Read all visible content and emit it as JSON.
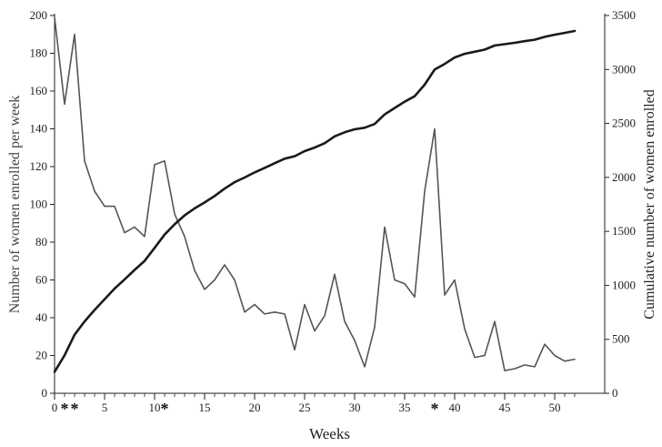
{
  "chart_data": {
    "type": "line",
    "xlabel": "Weeks",
    "ylabel_left": "Number of women enrolled per week",
    "ylabel_right": "Cumulative number of women enrolled",
    "xlim": [
      0,
      55
    ],
    "ylim_left": [
      0,
      200
    ],
    "ylim_right": [
      0,
      3500
    ],
    "x_ticks": [
      "0",
      "5",
      "10",
      "15",
      "20",
      "25",
      "30",
      "35",
      "40",
      "45",
      "50"
    ],
    "x_tick_values": [
      0,
      5,
      10,
      15,
      20,
      25,
      30,
      35,
      40,
      45,
      50
    ],
    "y_ticks_left": [
      "0",
      "20",
      "40",
      "60",
      "80",
      "100",
      "120",
      "140",
      "160",
      "180",
      "200"
    ],
    "y_ticks_right": [
      "0",
      "500",
      "1000",
      "1500",
      "2000",
      "2500",
      "3000",
      "3500"
    ],
    "asterisks": [
      {
        "x": 1,
        "label": "*"
      },
      {
        "x": 2,
        "label": "*"
      },
      {
        "x": 11,
        "label": "*"
      },
      {
        "x": 38,
        "label": "*"
      }
    ],
    "colors": {
      "weekly": "#555555",
      "cumulative": "#1a1a1a",
      "axis": "#222222"
    },
    "grid": false,
    "series": [
      {
        "axis": "left",
        "x": [
          0,
          1,
          2,
          3,
          4,
          5,
          6,
          7,
          8,
          9,
          10,
          11,
          12,
          13,
          14,
          15,
          16,
          17,
          18,
          19,
          20,
          21,
          22,
          23,
          24,
          25,
          26,
          27,
          28,
          29,
          30,
          31,
          32,
          33,
          34,
          35,
          36,
          37,
          38,
          39,
          40,
          41,
          42,
          43,
          44,
          45,
          46,
          47,
          48,
          49,
          50,
          51,
          52
        ],
        "values": [
          199,
          153,
          190,
          123,
          107,
          99,
          99,
          85,
          88,
          83,
          121,
          123,
          95,
          83,
          65,
          55,
          60,
          68,
          60,
          43,
          47,
          42,
          43,
          42,
          23,
          47,
          33,
          41,
          63,
          38,
          28,
          14,
          35,
          88,
          60,
          58,
          51,
          107,
          140,
          52,
          60,
          34,
          19,
          20,
          38,
          12,
          13,
          15,
          14,
          26,
          20,
          17,
          18
        ]
      },
      {
        "axis": "right",
        "x": [
          0,
          1,
          2,
          3,
          4,
          5,
          6,
          7,
          8,
          9,
          10,
          11,
          12,
          13,
          14,
          15,
          16,
          17,
          18,
          19,
          20,
          21,
          22,
          23,
          24,
          25,
          26,
          27,
          28,
          29,
          30,
          31,
          32,
          33,
          34,
          35,
          36,
          37,
          38,
          39,
          40,
          41,
          42,
          43,
          44,
          45,
          46,
          47,
          48,
          49,
          50,
          51,
          52
        ],
        "values": [
          199,
          352,
          542,
          665,
          772,
          871,
          970,
          1055,
          1143,
          1226,
          1347,
          1470,
          1565,
          1648,
          1713,
          1768,
          1828,
          1896,
          1956,
          1999,
          2046,
          2088,
          2131,
          2173,
          2196,
          2243,
          2276,
          2317,
          2380,
          2418,
          2446,
          2460,
          2495,
          2583,
          2643,
          2701,
          2752,
          2859,
          2999,
          3051,
          3111,
          3145,
          3164,
          3184,
          3222,
          3234,
          3247,
          3262,
          3276,
          3302,
          3322,
          3339,
          3357
        ]
      }
    ]
  }
}
